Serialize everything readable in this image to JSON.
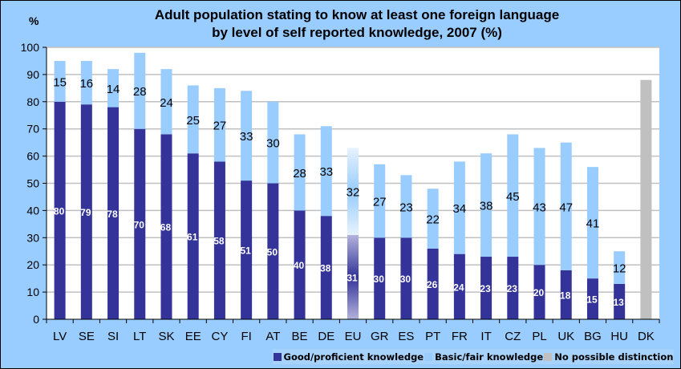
{
  "chart_data": {
    "type": "bar",
    "stacked": true,
    "title_line1": "Adult population stating to know at least one foreign language",
    "title_line2": "by level of self reported knowledge, 2007 (%)",
    "ylabel": "%",
    "xlabel": "",
    "ylim": [
      0,
      100
    ],
    "yticks": [
      0,
      10,
      20,
      30,
      40,
      50,
      60,
      70,
      80,
      90,
      100
    ],
    "grid": true,
    "legend_position": "bottom-right",
    "categories": [
      "LV",
      "SE",
      "SI",
      "LT",
      "SK",
      "EE",
      "CY",
      "FI",
      "AT",
      "BE",
      "DE",
      "EU",
      "GR",
      "ES",
      "PT",
      "FR",
      "IT",
      "CZ",
      "PL",
      "UK",
      "BG",
      "HU",
      "DK"
    ],
    "series": [
      {
        "name": "Good/proficient knowledge",
        "color": "#333399",
        "values": [
          80,
          79,
          78,
          70,
          68,
          61,
          58,
          51,
          50,
          40,
          38,
          31,
          30,
          30,
          26,
          24,
          23,
          23,
          20,
          18,
          15,
          13,
          null
        ]
      },
      {
        "name": "Basic/fair knowledge",
        "color": "#99ccff",
        "values": [
          15,
          16,
          14,
          28,
          24,
          25,
          27,
          33,
          30,
          28,
          33,
          32,
          27,
          23,
          22,
          34,
          38,
          45,
          43,
          47,
          41,
          12,
          null
        ]
      },
      {
        "name": "No possible distinction",
        "color": "#c0c0c0",
        "values": [
          null,
          null,
          null,
          null,
          null,
          null,
          null,
          null,
          null,
          null,
          null,
          null,
          null,
          null,
          null,
          null,
          null,
          null,
          null,
          null,
          null,
          null,
          88
        ]
      }
    ],
    "highlight_category": "EU"
  }
}
